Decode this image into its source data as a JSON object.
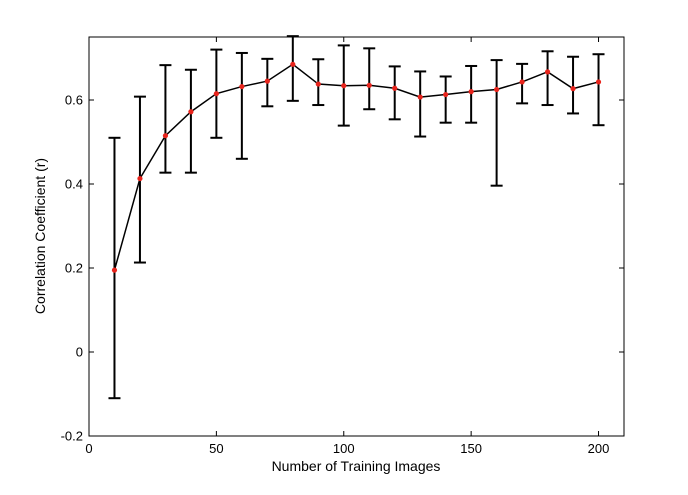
{
  "chart_data": {
    "type": "line",
    "title": "",
    "xlabel": "Number of Training Images",
    "ylabel": "Correlation Coefficient (r)",
    "xlim": [
      0,
      210
    ],
    "ylim": [
      -0.2,
      0.75
    ],
    "xticks": [
      0,
      50,
      100,
      150,
      200
    ],
    "xtick_labels": [
      "0",
      "50",
      "100",
      "150",
      "200"
    ],
    "yticks": [
      -0.2,
      0,
      0.2,
      0.4,
      0.6
    ],
    "ytick_labels": [
      "-0.2",
      "0",
      "0.2",
      "0.4",
      "0.6"
    ],
    "grid": false,
    "legend": "none",
    "line_color": "#000000",
    "marker_color": "#e8241c",
    "errorbar_color": "#000000",
    "series": [
      {
        "x": [
          10,
          20,
          30,
          40,
          50,
          60,
          70,
          80,
          90,
          100,
          110,
          120,
          130,
          140,
          150,
          160,
          170,
          180,
          190,
          200
        ],
        "y": [
          0.195,
          0.413,
          0.515,
          0.572,
          0.615,
          0.632,
          0.645,
          0.685,
          0.638,
          0.634,
          0.635,
          0.628,
          0.607,
          0.613,
          0.62,
          0.625,
          0.643,
          0.667,
          0.627,
          0.643
        ],
        "y_upper": [
          0.51,
          0.608,
          0.683,
          0.672,
          0.72,
          0.712,
          0.698,
          0.752,
          0.697,
          0.73,
          0.723,
          0.68,
          0.668,
          0.656,
          0.681,
          0.695,
          0.686,
          0.716,
          0.703,
          0.709
        ],
        "y_lower": [
          -0.11,
          0.213,
          0.427,
          0.427,
          0.51,
          0.46,
          0.585,
          0.598,
          0.588,
          0.539,
          0.578,
          0.554,
          0.513,
          0.546,
          0.546,
          0.396,
          0.592,
          0.588,
          0.568,
          0.54
        ]
      }
    ]
  }
}
